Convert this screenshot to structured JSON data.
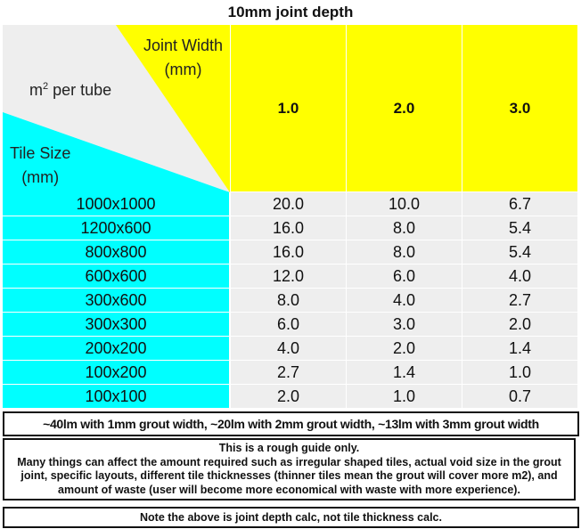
{
  "title": "10mm joint depth",
  "header": {
    "corner": {
      "joint_width_line1": "Joint Width",
      "joint_width_line2": "(mm)",
      "m2_base": "m",
      "m2_sup": "2",
      "m2_rest": " per tube",
      "tile_size_line1": "Tile Size",
      "tile_size_line2": "(mm)"
    },
    "columns": [
      "1.0",
      "2.0",
      "3.0"
    ]
  },
  "rows": [
    {
      "size": "1000x1000",
      "values": [
        "20.0",
        "10.0",
        "6.7"
      ]
    },
    {
      "size": "1200x600",
      "values": [
        "16.0",
        "8.0",
        "5.4"
      ]
    },
    {
      "size": "800x800",
      "values": [
        "16.0",
        "8.0",
        "5.4"
      ]
    },
    {
      "size": "600x600",
      "values": [
        "12.0",
        "6.0",
        "4.0"
      ]
    },
    {
      "size": "300x600",
      "values": [
        "8.0",
        "4.0",
        "2.7"
      ]
    },
    {
      "size": "300x300",
      "values": [
        "6.0",
        "3.0",
        "2.0"
      ]
    },
    {
      "size": "200x200",
      "values": [
        "4.0",
        "2.0",
        "1.4"
      ]
    },
    {
      "size": "100x200",
      "values": [
        "2.7",
        "1.4",
        "1.0"
      ]
    },
    {
      "size": "100x100",
      "values": [
        "2.0",
        "1.0",
        "0.7"
      ]
    }
  ],
  "notes": {
    "linear_meters": "~40lm with 1mm grout width, ~20lm with 2mm grout width, ~13lm with 3mm grout width",
    "guide_line1": "This is a rough guide only.",
    "guide_line2": "Many things can affect the amount required such as irregular shaped tiles, actual void size in the grout joint, specific layouts, different tile thicknesses (thinner tiles mean the grout will cover more m2), and amount of waste (user will become more economical with waste with more experience).",
    "depth_note": "Note the above is joint depth calc, not tile thickness calc."
  },
  "colors": {
    "header": "#ffff00",
    "tile_size_column": "#00ffff",
    "cells": "#eeeeee"
  }
}
